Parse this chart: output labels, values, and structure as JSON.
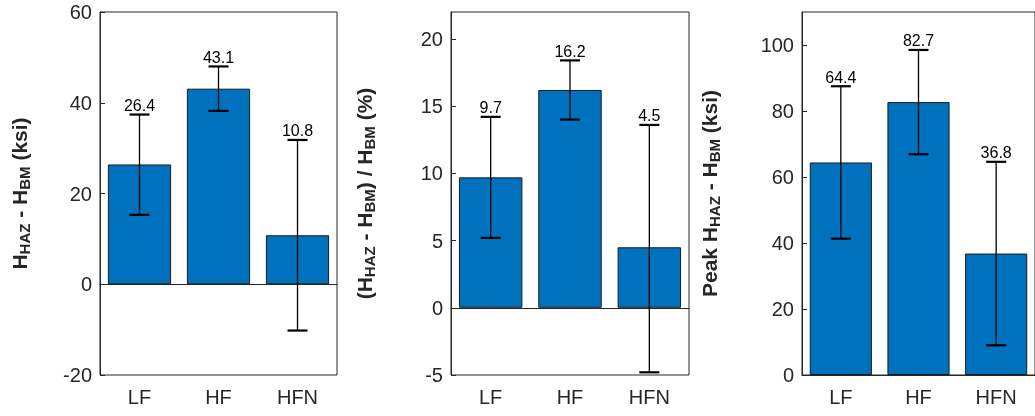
{
  "chart_data": [
    {
      "type": "bar",
      "ylabel": "H$_{HAZ}$ - H$_{BM}$ (ksi)",
      "categories": [
        "LF",
        "HF",
        "HFN"
      ],
      "values": [
        26.4,
        43.1,
        10.8
      ],
      "color": "#0072bd",
      "errors": [
        [
          15.3,
          37.4
        ],
        [
          38.2,
          48.0
        ],
        [
          -10.2,
          31.8
        ]
      ],
      "ylim": [
        -20,
        60
      ],
      "yticks": [
        -20,
        0,
        20,
        40,
        60
      ],
      "grid": false,
      "annotations": [
        {
          "text": "26.4",
          "x": "LF",
          "y": 37.4
        },
        {
          "text": "43.1",
          "x": "HF",
          "y": 48.0
        },
        {
          "text": "10.8",
          "x": "HFN",
          "y": 31.8
        }
      ],
      "ref_lines": [
        {
          "axis": "y",
          "value": 0,
          "label": null
        }
      ]
    },
    {
      "type": "bar",
      "ylabel": "(H$_{HAZ}$ - H$_{BM}$) / H$_{BM}$ (%)",
      "categories": [
        "LF",
        "HF",
        "HFN"
      ],
      "values": [
        9.7,
        16.2,
        4.5
      ],
      "color": "#0072bd",
      "errors": [
        [
          5.2,
          14.2
        ],
        [
          14.0,
          18.4
        ],
        [
          -4.8,
          13.6
        ]
      ],
      "ylim": [
        -5,
        22
      ],
      "yticks": [
        -5,
        0,
        5,
        10,
        15,
        20
      ],
      "grid": false,
      "annotations": [
        {
          "text": "9.7",
          "x": "LF",
          "y": 14.2
        },
        {
          "text": "16.2",
          "x": "HF",
          "y": 18.4
        },
        {
          "text": "4.5",
          "x": "HFN",
          "y": 13.6
        }
      ],
      "ref_lines": [
        {
          "axis": "y",
          "value": 0,
          "label": null
        }
      ]
    },
    {
      "type": "bar",
      "ylabel": "Peak H$_{HAZ}$ - H$_{BM}$ (ksi)",
      "categories": [
        "LF",
        "HF",
        "HFN"
      ],
      "values": [
        64.4,
        82.7,
        36.8
      ],
      "color": "#0072bd",
      "errors": [
        [
          41.3,
          87.5
        ],
        [
          66.9,
          98.5
        ],
        [
          9.0,
          64.6
        ]
      ],
      "ylim": [
        0,
        110
      ],
      "yticks": [
        0,
        20,
        40,
        60,
        80,
        100
      ],
      "grid": false,
      "annotations": [
        {
          "text": "64.4",
          "x": "LF",
          "y": 87.5
        },
        {
          "text": "82.7",
          "x": "HF",
          "y": 98.5
        },
        {
          "text": "36.8",
          "x": "HFN",
          "y": 64.6
        }
      ]
    }
  ]
}
